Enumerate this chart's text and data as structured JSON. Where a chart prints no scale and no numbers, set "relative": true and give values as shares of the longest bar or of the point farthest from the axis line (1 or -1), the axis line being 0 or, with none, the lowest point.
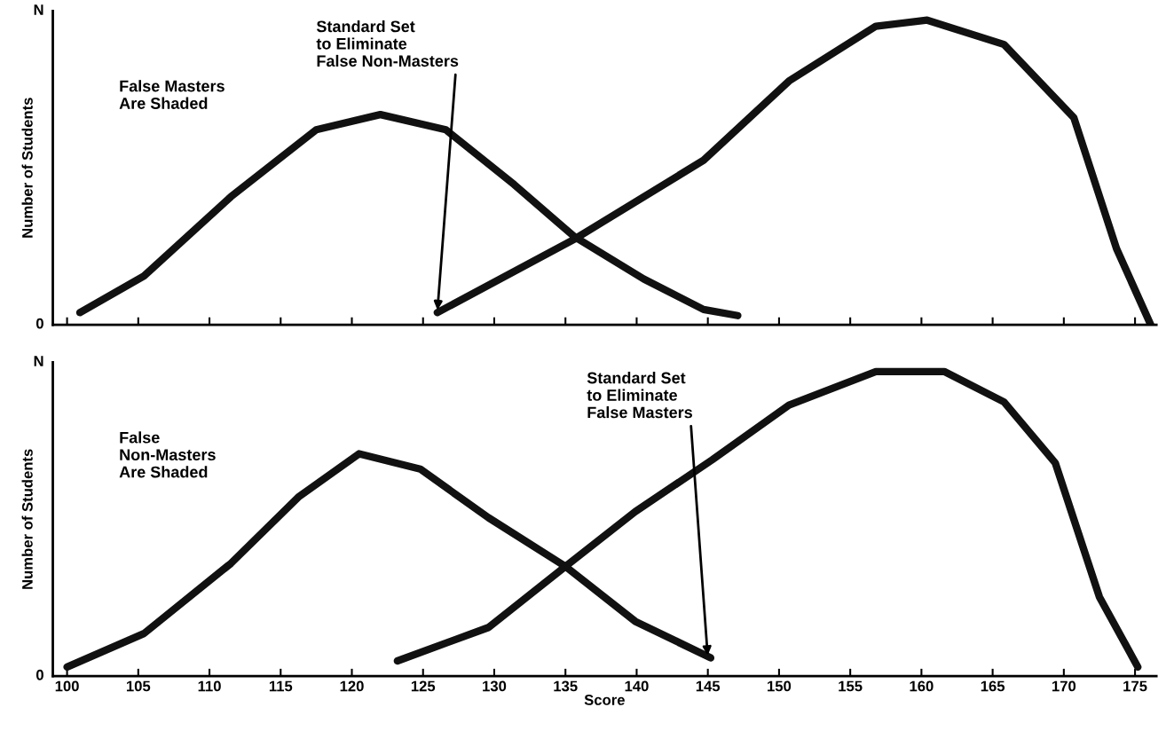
{
  "chart_data": [
    {
      "type": "line",
      "ylabel": "Number of Students",
      "relative": true,
      "xlim": [
        99,
        176.5
      ],
      "xticks": [
        100,
        105,
        110,
        115,
        120,
        125,
        130,
        135,
        140,
        145,
        150,
        155,
        160,
        165,
        170,
        175
      ],
      "tick_labels": false,
      "grid": false,
      "legend": false,
      "series": [
        {
          "color": "#111111",
          "x": [
            100.9,
            105.4,
            111.5,
            117.5,
            122,
            126.6,
            131.4,
            135.6,
            140.5,
            144.7,
            147.1
          ],
          "values": [
            0.04,
            0.16,
            0.42,
            0.64,
            0.69,
            0.64,
            0.46,
            0.29,
            0.15,
            0.05,
            0.03
          ]
        },
        {
          "color": "#111111",
          "x": [
            126,
            135.6,
            144.7,
            150.7,
            156.8,
            160.4,
            165.8,
            170.7,
            173.7,
            176.1
          ],
          "values": [
            0.04,
            0.28,
            0.54,
            0.8,
            0.98,
            1,
            0.92,
            0.68,
            0.25,
            0.0
          ]
        }
      ],
      "annotations": [
        "0",
        "N",
        "False Masters\nAre Shaded",
        {
          "text": "Standard Set\nto Eliminate\nFalse Non-Masters",
          "x": 126,
          "y": 0.04
        }
      ]
    },
    {
      "type": "line",
      "xlabel": "Score",
      "ylabel": "Number of Students",
      "relative": true,
      "xlim": [
        99,
        176.5
      ],
      "xticks": [
        100,
        105,
        110,
        115,
        120,
        125,
        130,
        135,
        140,
        145,
        150,
        155,
        160,
        165,
        170,
        175
      ],
      "tick_labels": "x",
      "grid": false,
      "legend": false,
      "series": [
        {
          "color": "#111111",
          "x": [
            100,
            105.4,
            111.5,
            116.3,
            120.5,
            124.8,
            129.6,
            135,
            139.9,
            145.2
          ],
          "values": [
            0.03,
            0.14,
            0.37,
            0.59,
            0.73,
            0.68,
            0.52,
            0.36,
            0.18,
            0.06
          ]
        },
        {
          "color": "#111111",
          "x": [
            123.2,
            129.6,
            135,
            139.9,
            145.3,
            150.7,
            156.8,
            161.6,
            165.8,
            169.4,
            172.5,
            175.2
          ],
          "values": [
            0.05,
            0.16,
            0.36,
            0.54,
            0.71,
            0.89,
            1,
            1,
            0.9,
            0.7,
            0.26,
            0.03
          ]
        }
      ],
      "annotations": [
        "0",
        "N",
        "False\nNon-Masters\nAre Shaded",
        {
          "text": "Standard Set\nto Eliminate\nFalse Masters",
          "x": 145,
          "y": 0.06
        }
      ]
    }
  ]
}
